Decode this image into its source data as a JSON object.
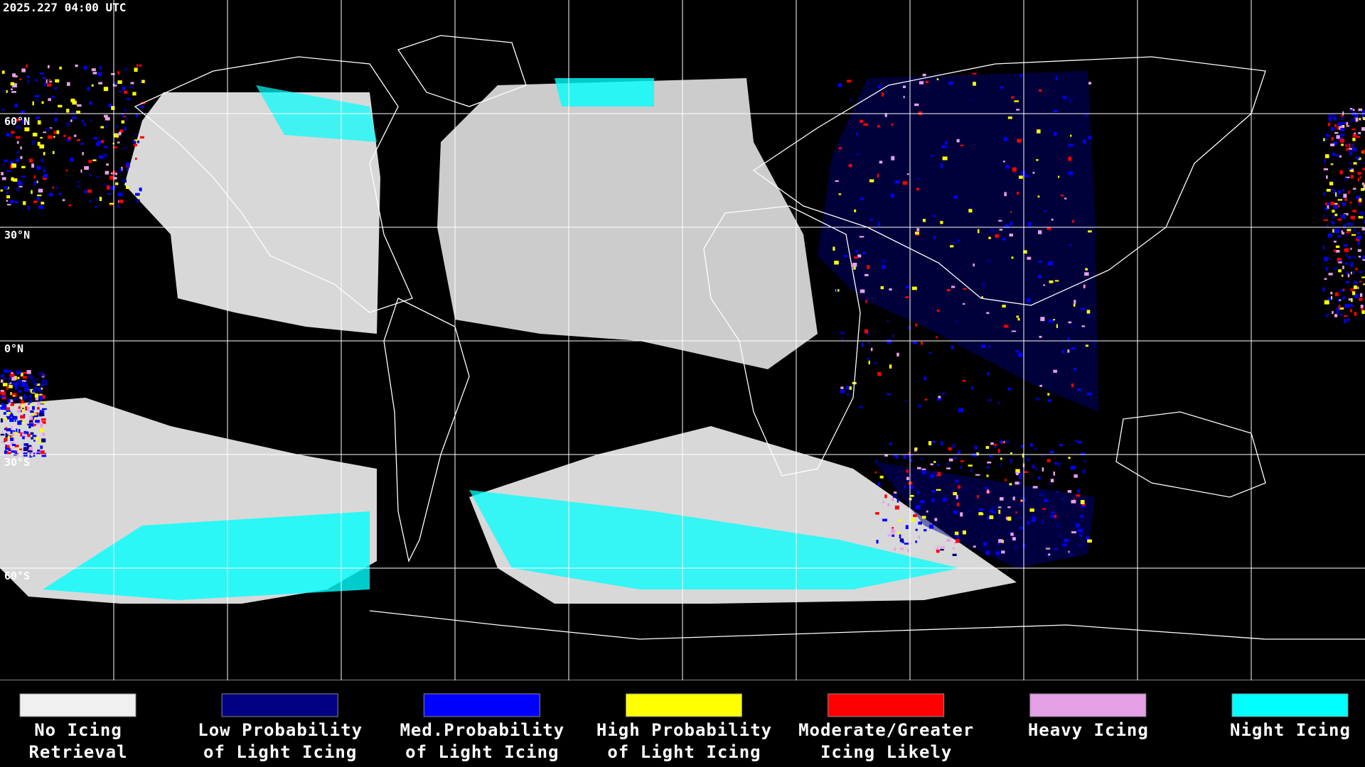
{
  "header": {
    "timestamp": "2025.227 04:00 UTC"
  },
  "map": {
    "latitude_labels": [
      "60°N",
      "30°N",
      "0°N",
      "30°S",
      "60°S"
    ]
  },
  "legend": {
    "items": [
      {
        "label": [
          "No Icing",
          "Retrieval"
        ],
        "color": "#f0f0f0"
      },
      {
        "label": [
          "Low Probability",
          "of Light Icing"
        ],
        "color": "#000080"
      },
      {
        "label": [
          "Med.Probability",
          "of Light Icing"
        ],
        "color": "#0000ff"
      },
      {
        "label": [
          "High Probability",
          "of Light Icing"
        ],
        "color": "#ffff00"
      },
      {
        "label": [
          "Moderate/Greater",
          "Icing Likely"
        ],
        "color": "#ff0000"
      },
      {
        "label": [
          "Heavy Icing"
        ],
        "color": "#e6a0e6"
      },
      {
        "label": [
          "Night Icing"
        ],
        "color": "#00ffff"
      }
    ]
  }
}
